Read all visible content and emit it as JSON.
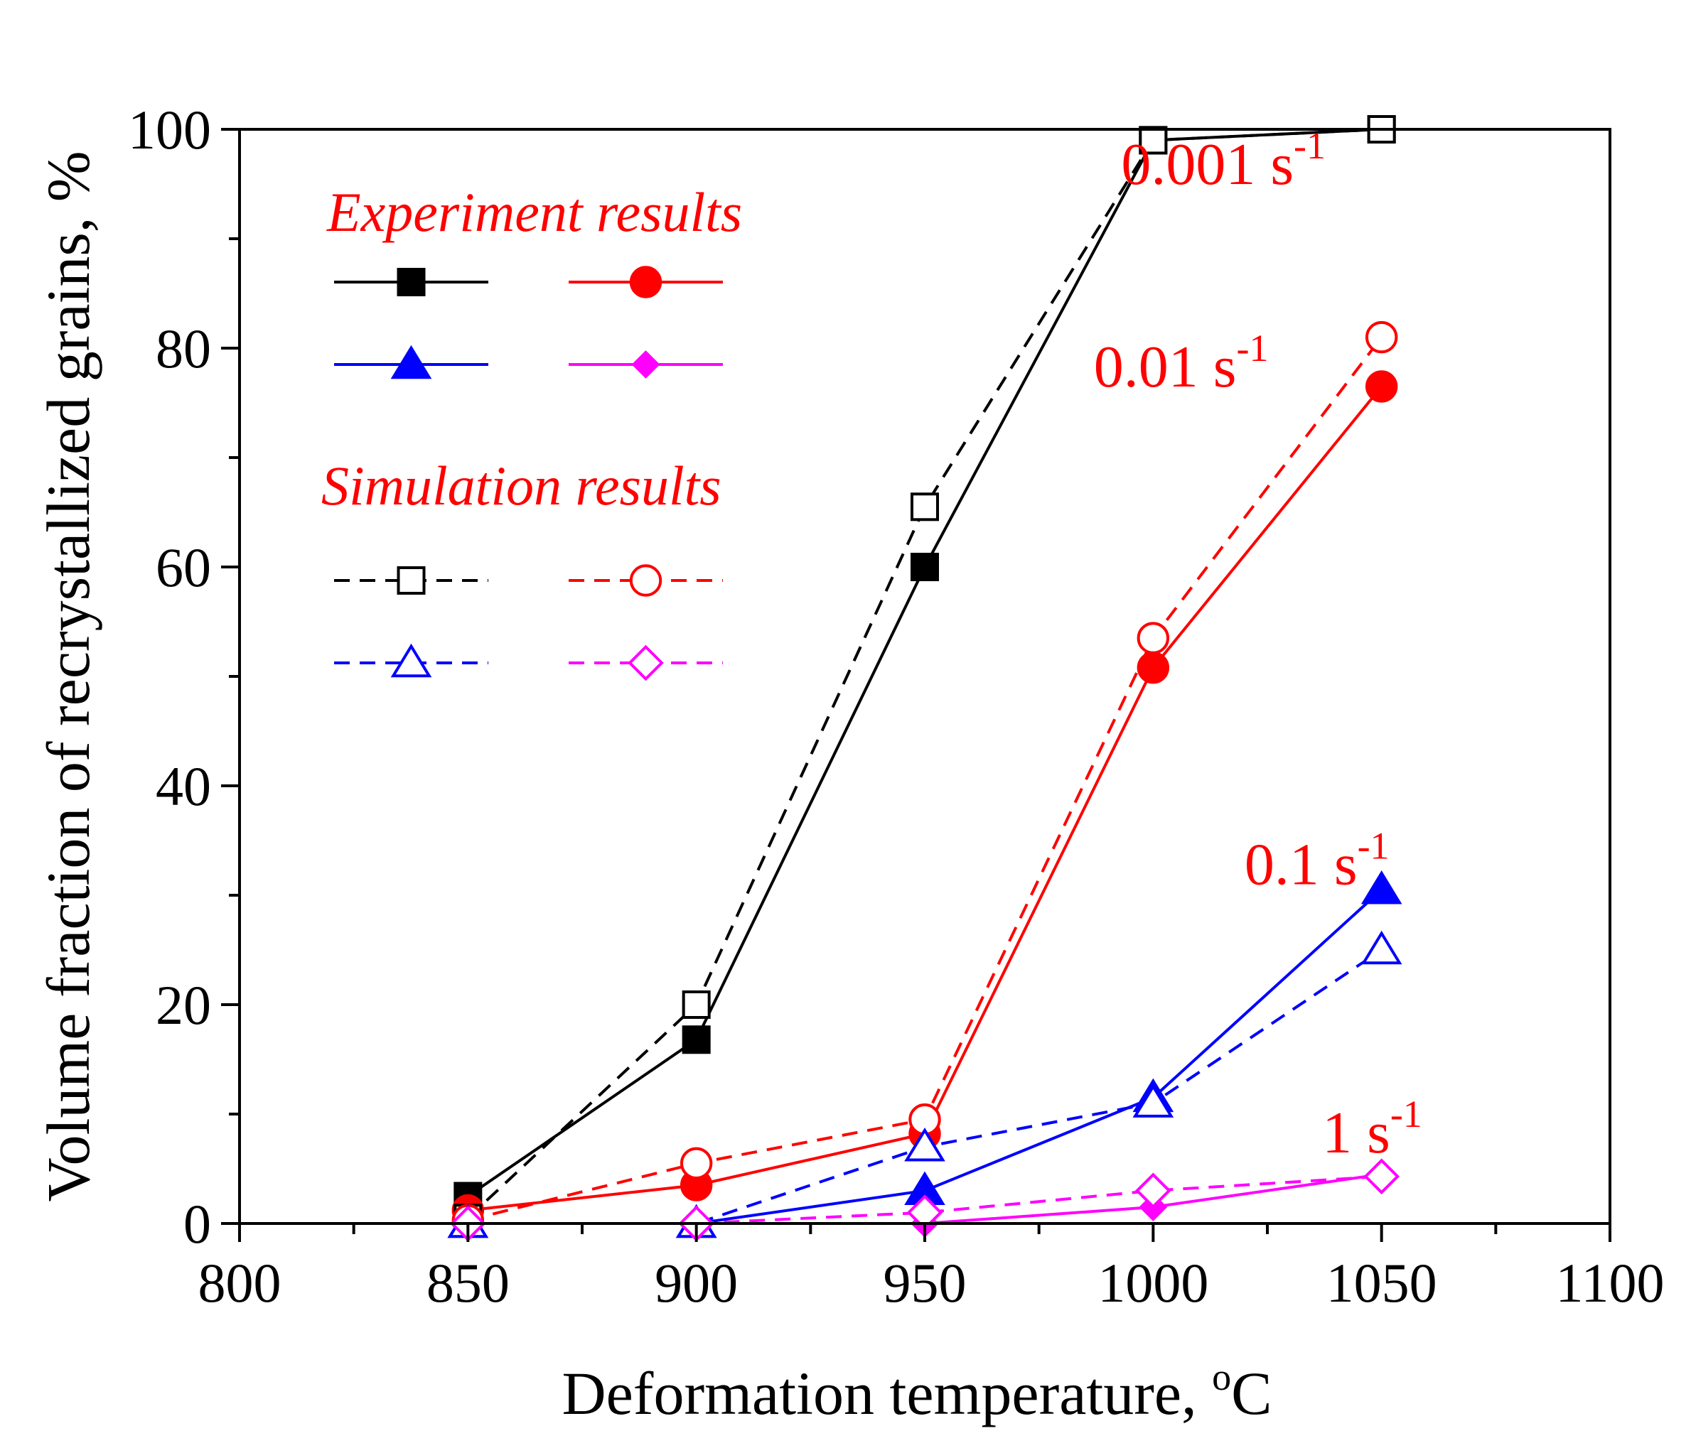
{
  "chart_data": {
    "type": "line",
    "xlabel": "Deformation temperature, ",
    "xlabel_unit_sup": "o",
    "xlabel_unit": "C",
    "ylabel": "Volume fraction of recrystallized grains, %",
    "xlim": [
      800,
      1100
    ],
    "ylim": [
      0,
      100
    ],
    "xticks": [
      "800",
      "850",
      "900",
      "950",
      "1000",
      "1050",
      "1100"
    ],
    "yticks": [
      "0",
      "20",
      "40",
      "60",
      "80",
      "100"
    ],
    "x": [
      850,
      900,
      950,
      1000,
      1050
    ],
    "grid": false,
    "legend": {
      "placement": "top-left",
      "experiment_title": "Experiment results",
      "simulation_title": "Simulation results"
    },
    "series": [
      {
        "group": "experiment",
        "rate": "0.001",
        "color": "#000000",
        "marker": "square",
        "filled": true,
        "dashed": false,
        "values": [
          2.5,
          16.8,
          60.0,
          99.0,
          100.0
        ]
      },
      {
        "group": "experiment",
        "rate": "0.01",
        "color": "#ff0000",
        "marker": "circle",
        "filled": true,
        "dashed": false,
        "values": [
          1.2,
          3.5,
          8.2,
          50.8,
          76.5
        ]
      },
      {
        "group": "experiment",
        "rate": "0.1",
        "color": "#0000ff",
        "marker": "triangle",
        "filled": true,
        "dashed": false,
        "values": [
          0.0,
          0.0,
          3.0,
          11.5,
          30.5
        ]
      },
      {
        "group": "experiment",
        "rate": "1",
        "color": "#ff00ff",
        "marker": "diamond",
        "filled": true,
        "dashed": false,
        "values": [
          0.0,
          0.0,
          0.0,
          1.5,
          4.5
        ]
      },
      {
        "group": "simulation",
        "rate": "0.001",
        "color": "#000000",
        "marker": "square",
        "filled": false,
        "dashed": true,
        "values": [
          0.5,
          20.0,
          65.5,
          99.0,
          100.0
        ]
      },
      {
        "group": "simulation",
        "rate": "0.01",
        "color": "#ff0000",
        "marker": "circle",
        "filled": false,
        "dashed": true,
        "values": [
          0.3,
          5.5,
          9.5,
          53.5,
          81.0
        ]
      },
      {
        "group": "simulation",
        "rate": "0.1",
        "color": "#0000ff",
        "marker": "triangle",
        "filled": false,
        "dashed": true,
        "values": [
          0.0,
          0.0,
          7.0,
          11.0,
          25.0
        ]
      },
      {
        "group": "simulation",
        "rate": "1",
        "color": "#ff00ff",
        "marker": "diamond",
        "filled": false,
        "dashed": true,
        "values": [
          0.0,
          0.0,
          1.0,
          3.0,
          4.3
        ]
      }
    ],
    "annotations": [
      {
        "text": "0.001 s",
        "sup": "-1",
        "at_x": 993,
        "at_y": 95.0
      },
      {
        "text": "0.01 s",
        "sup": "-1",
        "at_x": 987,
        "at_y": 76.5
      },
      {
        "text": "0.1 s",
        "sup": "-1",
        "at_x": 1020,
        "at_y": 31.0
      },
      {
        "text": "1 s",
        "sup": "-1",
        "at_x": 1037,
        "at_y": 6.5
      }
    ]
  }
}
